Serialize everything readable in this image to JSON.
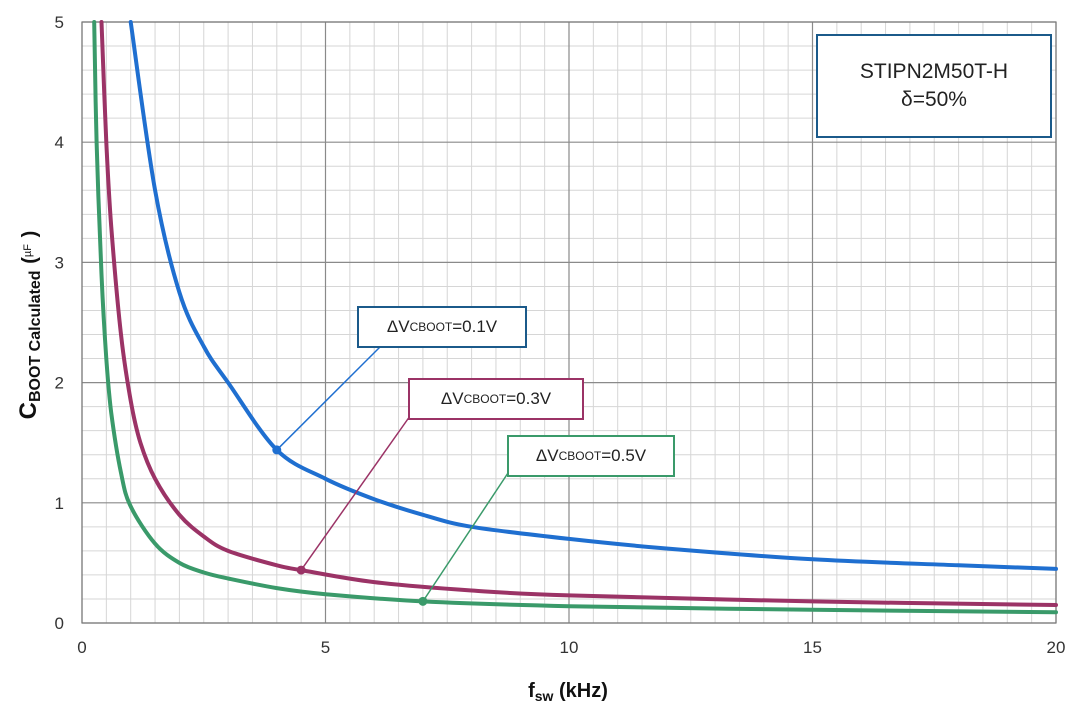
{
  "chart_data": {
    "type": "line",
    "xlabel_main": "f",
    "xlabel_sub": "sw",
    "xlabel_unit": "(kHz)",
    "ylabel_main": "C",
    "ylabel_sub": "BOOT Calculated",
    "ylabel_unit_open": "(",
    "ylabel_unit": "µF",
    "ylabel_unit_close": ")",
    "xlim": [
      0,
      20
    ],
    "ylim": [
      0,
      5
    ],
    "x_ticks": [
      0,
      5,
      10,
      15,
      20
    ],
    "y_ticks": [
      0,
      1,
      2,
      3,
      4,
      5
    ],
    "grid": true,
    "box": {
      "line1": "STIPN2M50T-H",
      "line2": "δ=50%"
    },
    "series": [
      {
        "label_main": "ΔV",
        "label_sub": "CBOOT",
        "label_value": "=0.1V",
        "color": "#1f6fd0",
        "x": [
          1.0,
          1.5,
          2.0,
          2.5,
          3.0,
          4.0,
          5.0,
          6.0,
          7.0,
          8.0,
          10.0,
          12.0,
          15.0,
          18.0,
          20.0
        ],
        "y": [
          5.0,
          3.6,
          2.75,
          2.3,
          2.0,
          1.44,
          1.2,
          1.03,
          0.9,
          0.8,
          0.7,
          0.62,
          0.53,
          0.48,
          0.45
        ],
        "marker": [
          4.0,
          1.44
        ]
      },
      {
        "label_main": "ΔV",
        "label_sub": "CBOOT",
        "label_value": "=0.3V",
        "color": "#9b3366",
        "x": [
          0.4,
          0.5,
          0.6,
          0.8,
          1.0,
          1.2,
          1.5,
          2.0,
          2.5,
          3.0,
          4.0,
          4.5,
          6.0,
          8.0,
          10.0,
          15.0,
          20.0
        ],
        "y": [
          5.0,
          4.0,
          3.3,
          2.4,
          1.85,
          1.5,
          1.2,
          0.9,
          0.72,
          0.6,
          0.48,
          0.44,
          0.34,
          0.27,
          0.23,
          0.18,
          0.15
        ],
        "marker": [
          4.5,
          0.44
        ]
      },
      {
        "label_main": "ΔV",
        "label_sub": "CBOOT",
        "label_value": "=0.5V",
        "color": "#3a9a6a",
        "x": [
          0.25,
          0.3,
          0.4,
          0.5,
          0.6,
          0.8,
          1.0,
          1.5,
          2.0,
          2.5,
          3.0,
          4.0,
          5.0,
          7.0,
          10.0,
          15.0,
          20.0
        ],
        "y": [
          5.0,
          4.0,
          2.9,
          2.2,
          1.75,
          1.25,
          0.97,
          0.66,
          0.5,
          0.42,
          0.37,
          0.29,
          0.24,
          0.18,
          0.14,
          0.11,
          0.09
        ],
        "marker": [
          7.0,
          0.18
        ]
      }
    ]
  }
}
